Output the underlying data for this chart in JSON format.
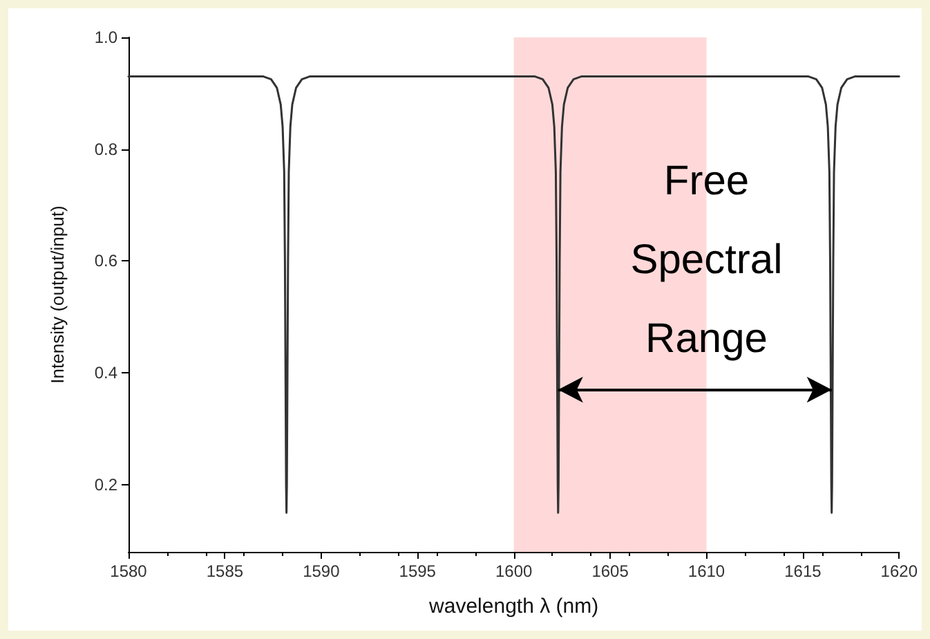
{
  "chart_data": {
    "type": "line",
    "xlabel": "wavelength λ (nm)",
    "ylabel": "Intensity (output/input)",
    "xlim": [
      1580,
      1620
    ],
    "xticks": [
      1580,
      1585,
      1590,
      1595,
      1600,
      1605,
      1610,
      1615,
      1620
    ],
    "ylim": [
      0.08,
      1.0
    ],
    "yticks": [
      0.2,
      0.4,
      0.6,
      0.8,
      {
        "value": 1.0,
        "label": "1.0"
      }
    ],
    "grid": false,
    "marker": "none",
    "line_style": "solid",
    "bands": [
      {
        "axis": "x",
        "from": 1600,
        "to": 1610,
        "color": "#ffd9d9"
      }
    ],
    "annotations": [
      {
        "text": "Free Spectral Range",
        "x": 1610,
        "y": 0.37
      }
    ],
    "series": [
      {
        "color": "#333333",
        "x": [
          1580,
          1587.0,
          1587.4,
          1587.7,
          1587.9,
          1588.0,
          1588.08,
          1588.12,
          1588.15,
          1588.18,
          1588.2,
          1588.22,
          1588.25,
          1588.28,
          1588.32,
          1588.4,
          1588.5,
          1588.7,
          1589.0,
          1589.4,
          1601.1,
          1601.5,
          1601.8,
          1602.0,
          1602.1,
          1602.18,
          1602.22,
          1602.25,
          1602.28,
          1602.3,
          1602.32,
          1602.35,
          1602.38,
          1602.42,
          1602.5,
          1602.6,
          1602.8,
          1603.1,
          1603.5,
          1615.3,
          1615.7,
          1616.0,
          1616.2,
          1616.3,
          1616.38,
          1616.42,
          1616.45,
          1616.48,
          1616.5,
          1616.52,
          1616.55,
          1616.58,
          1616.62,
          1616.7,
          1616.8,
          1617.0,
          1617.3,
          1617.7,
          1620
        ],
        "values": [
          0.93,
          0.93,
          0.925,
          0.91,
          0.88,
          0.84,
          0.76,
          0.6,
          0.4,
          0.2,
          0.15,
          0.2,
          0.4,
          0.6,
          0.76,
          0.84,
          0.88,
          0.91,
          0.925,
          0.93,
          0.93,
          0.925,
          0.91,
          0.88,
          0.84,
          0.76,
          0.6,
          0.4,
          0.2,
          0.15,
          0.2,
          0.4,
          0.6,
          0.76,
          0.84,
          0.88,
          0.91,
          0.925,
          0.93,
          0.93,
          0.925,
          0.91,
          0.88,
          0.84,
          0.76,
          0.6,
          0.4,
          0.2,
          0.15,
          0.2,
          0.4,
          0.6,
          0.76,
          0.84,
          0.88,
          0.91,
          0.925,
          0.93,
          0.93
        ]
      }
    ]
  }
}
